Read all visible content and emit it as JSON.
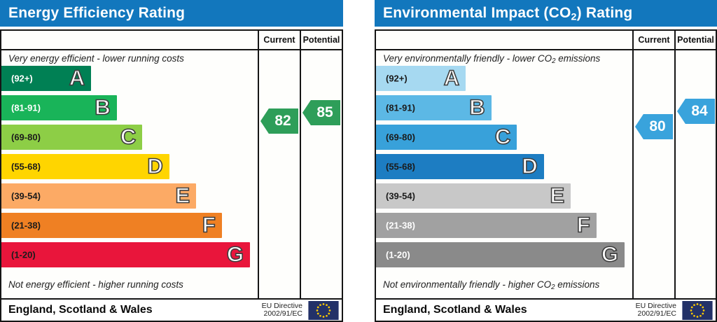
{
  "panels": [
    {
      "title": {
        "pre": "Energy Efficiency Rating",
        "sub": "",
        "post": ""
      },
      "columns": {
        "current": "Current",
        "potential": "Potential"
      },
      "top_note": {
        "pre": "Very energy efficient - lower running costs",
        "sub": "",
        "post": ""
      },
      "bottom_note": {
        "pre": "Not energy efficient - higher running costs",
        "sub": "",
        "post": ""
      },
      "bands": [
        {
          "letter": "A",
          "range": "(92+)",
          "color": "#008054",
          "width_pct": 35
        },
        {
          "letter": "B",
          "range": "(81-91)",
          "color": "#19b459",
          "width_pct": 45
        },
        {
          "letter": "C",
          "range": "(69-80)",
          "color": "#8dce46",
          "width_pct": 55
        },
        {
          "letter": "D",
          "range": "(55-68)",
          "color": "#ffd500",
          "width_pct": 65.5
        },
        {
          "letter": "E",
          "range": "(39-54)",
          "color": "#fcaa65",
          "width_pct": 76
        },
        {
          "letter": "F",
          "range": "(21-38)",
          "color": "#ef8023",
          "width_pct": 86
        },
        {
          "letter": "G",
          "range": "(1-20)",
          "color": "#e9153b",
          "width_pct": 97
        }
      ],
      "current": {
        "value": "82",
        "color": "#2e9e59"
      },
      "potential": {
        "value": "85",
        "color": "#2e9e59"
      },
      "footer": {
        "region": "England, Scotland & Wales",
        "directive_line1": "EU Directive",
        "directive_line2": "2002/91/EC"
      }
    },
    {
      "title": {
        "pre": "Environmental Impact (CO",
        "sub": "2",
        "post": ") Rating"
      },
      "columns": {
        "current": "Current",
        "potential": "Potential"
      },
      "top_note": {
        "pre": "Very environmentally friendly - lower CO",
        "sub": "2",
        "post": " emissions"
      },
      "bottom_note": {
        "pre": "Not environmentally friendly - higher CO",
        "sub": "2",
        "post": " emissions"
      },
      "bands": [
        {
          "letter": "A",
          "range": "(92+)",
          "color": "#a6d9f1",
          "width_pct": 35
        },
        {
          "letter": "B",
          "range": "(81-91)",
          "color": "#5cb8e5",
          "width_pct": 45
        },
        {
          "letter": "C",
          "range": "(69-80)",
          "color": "#38a1da",
          "width_pct": 55
        },
        {
          "letter": "D",
          "range": "(55-68)",
          "color": "#1d7dc2",
          "width_pct": 65.5
        },
        {
          "letter": "E",
          "range": "(39-54)",
          "color": "#c8c8c8",
          "width_pct": 76
        },
        {
          "letter": "F",
          "range": "(21-38)",
          "color": "#a1a1a1",
          "width_pct": 86
        },
        {
          "letter": "G",
          "range": "(1-20)",
          "color": "#8a8a8a",
          "width_pct": 97
        }
      ],
      "current": {
        "value": "80",
        "color": "#39a3dc"
      },
      "potential": {
        "value": "84",
        "color": "#39a3dc"
      },
      "footer": {
        "region": "England, Scotland & Wales",
        "directive_line1": "EU Directive",
        "directive_line2": "2002/91/EC"
      }
    }
  ],
  "colors": {
    "header_bar": "#1277bd",
    "border": "#151515",
    "eu_flag_blue": "#233168",
    "eu_flag_star": "#ffcc00"
  },
  "chart_data": [
    {
      "type": "bar",
      "title": "Energy Efficiency Rating",
      "categories": [
        "A (92+)",
        "B (81-91)",
        "C (69-80)",
        "D (55-68)",
        "E (39-54)",
        "F (21-38)",
        "G (1-20)"
      ],
      "values": [
        35,
        45,
        55,
        65.5,
        76,
        86,
        97
      ],
      "band_colors": [
        "#008054",
        "#19b459",
        "#8dce46",
        "#ffd500",
        "#fcaa65",
        "#ef8023",
        "#e9153b"
      ],
      "current": 82,
      "potential": 85,
      "current_band": "B",
      "potential_band": "B",
      "top_note": "Very energy efficient - lower running costs",
      "bottom_note": "Not energy efficient - higher running costs",
      "region": "England, Scotland & Wales",
      "directive": "EU Directive 2002/91/EC",
      "xlabel": "",
      "ylabel": "",
      "legend": [
        "Current",
        "Potential"
      ]
    },
    {
      "type": "bar",
      "title": "Environmental Impact (CO2) Rating",
      "categories": [
        "A (92+)",
        "B (81-91)",
        "C (69-80)",
        "D (55-68)",
        "E (39-54)",
        "F (21-38)",
        "G (1-20)"
      ],
      "values": [
        35,
        45,
        55,
        65.5,
        76,
        86,
        97
      ],
      "band_colors": [
        "#a6d9f1",
        "#5cb8e5",
        "#38a1da",
        "#1d7dc2",
        "#c8c8c8",
        "#a1a1a1",
        "#8a8a8a"
      ],
      "current": 80,
      "potential": 84,
      "current_band": "C",
      "potential_band": "B",
      "top_note": "Very environmentally friendly - lower CO2 emissions",
      "bottom_note": "Not environmentally friendly - higher CO2 emissions",
      "region": "England, Scotland & Wales",
      "directive": "EU Directive 2002/91/EC",
      "xlabel": "",
      "ylabel": "",
      "legend": [
        "Current",
        "Potential"
      ]
    }
  ]
}
